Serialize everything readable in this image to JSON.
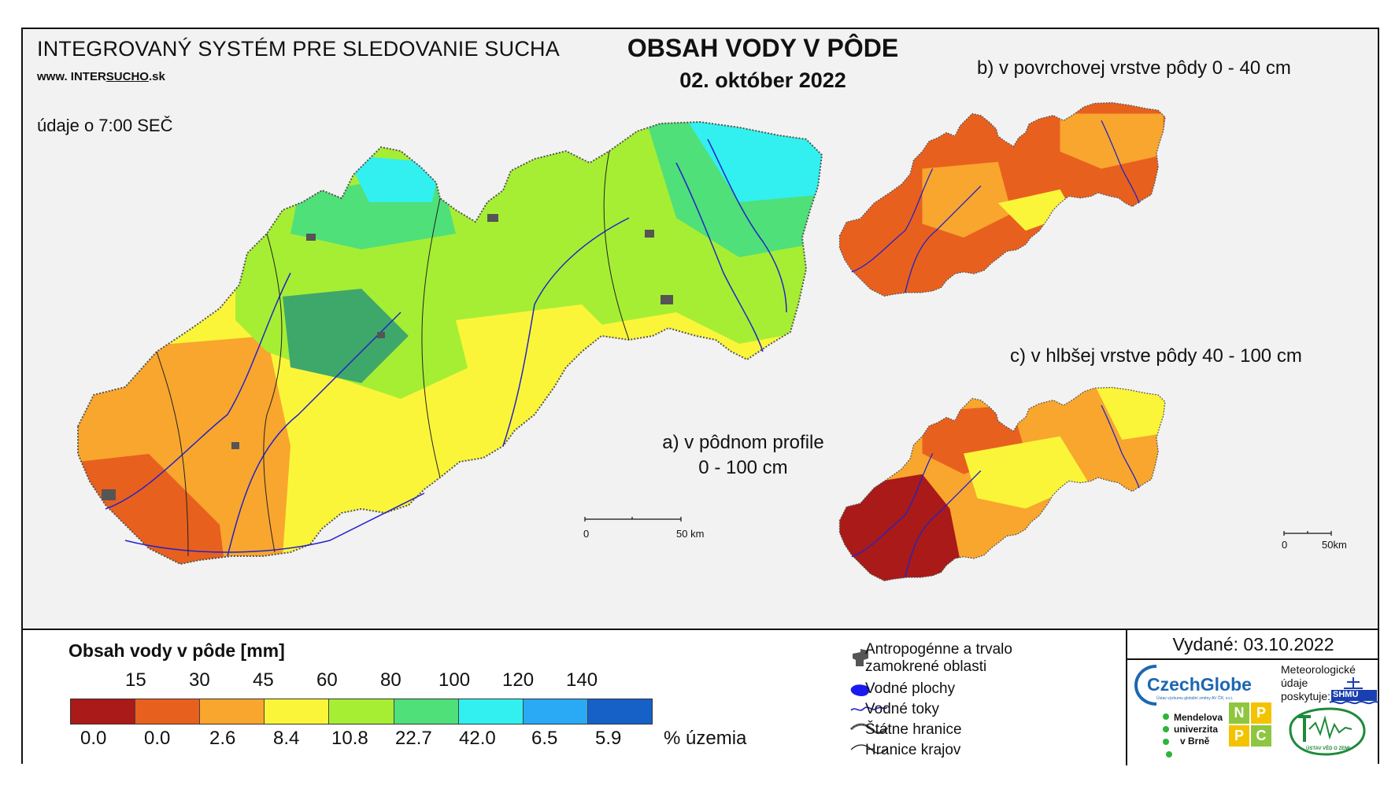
{
  "header": {
    "system_title": "INTEGROVANÝ SYSTÉM PRE SLEDOVANIE SUCHA",
    "url_prefix": "www. INTER",
    "url_brand": "SUCHO",
    "url_suffix": ".sk",
    "obs_time": "údaje o 7:00 SEČ",
    "title": "OBSAH VODY V PÔDE",
    "date": "02. október 2022"
  },
  "panels": {
    "a_line1": "a) v pôdnom profile",
    "a_line2": "0 - 100 cm",
    "b": "b) v povrchovej vrstve pôdy 0 - 40 cm",
    "c": "c) v hlbšej vrstve pôdy 40 - 100 cm"
  },
  "scale_main": {
    "zero": "0",
    "end": "50 km"
  },
  "scale_small": {
    "zero": "0",
    "end": "50km"
  },
  "legend": {
    "title": "Obsah vody v pôde  [mm]",
    "thresholds": [
      "15",
      "30",
      "45",
      "60",
      "80",
      "100",
      "120",
      "140"
    ],
    "classes": [
      {
        "color": "#a91a18",
        "percent": "0.0"
      },
      {
        "color": "#e8601e",
        "percent": "0.0"
      },
      {
        "color": "#f8a62e",
        "percent": "2.6"
      },
      {
        "color": "#fbf53a",
        "percent": "8.4"
      },
      {
        "color": "#a6ee34",
        "percent": "10.8"
      },
      {
        "color": "#4fe079",
        "percent": "22.7"
      },
      {
        "color": "#32f0f0",
        "percent": "42.0"
      },
      {
        "color": "#2aaaf5",
        "percent": "6.5"
      },
      {
        "color": "#1661c8",
        "percent": "5.9"
      }
    ],
    "percent_unit": "% územia"
  },
  "symbols": {
    "anthropogenic_1": "Antropogénne a trvalo",
    "anthropogenic_2": "zamokrené oblasti",
    "water_bodies": "Vodné plochy",
    "streams": "Vodné toky",
    "state_border": "Štátne hranice",
    "region_border": "Hranice krajov"
  },
  "issued": "Vydané: 03.10.2022",
  "logos": {
    "czechglobe": "CzechGlobe",
    "czechglobe_sub": "Ústav výzkumu globální změny AV ČR, v.v.i.",
    "met_1": "Meteorologické",
    "met_2": "údaje",
    "met_3": "poskytuje:",
    "shmu": "SHMÚ",
    "mendel_1": "Mendelova",
    "mendel_2": "univerzita",
    "mendel_3": "v Brně",
    "npc": [
      "N",
      "P",
      "P",
      "C"
    ],
    "uvgz": "ÚSTAV VĚD O ZEMI"
  },
  "map_colors": {
    "red": "#a91a18",
    "orange_dark": "#e8601e",
    "orange": "#f8a62e",
    "yellow": "#fbf53a",
    "lime": "#a6ee34",
    "green": "#4fe079",
    "green_dark": "#3ea86a",
    "cyan": "#32f0f0",
    "blue_light": "#2aaaf5",
    "river": "#2323c8",
    "urban": "#555555"
  }
}
